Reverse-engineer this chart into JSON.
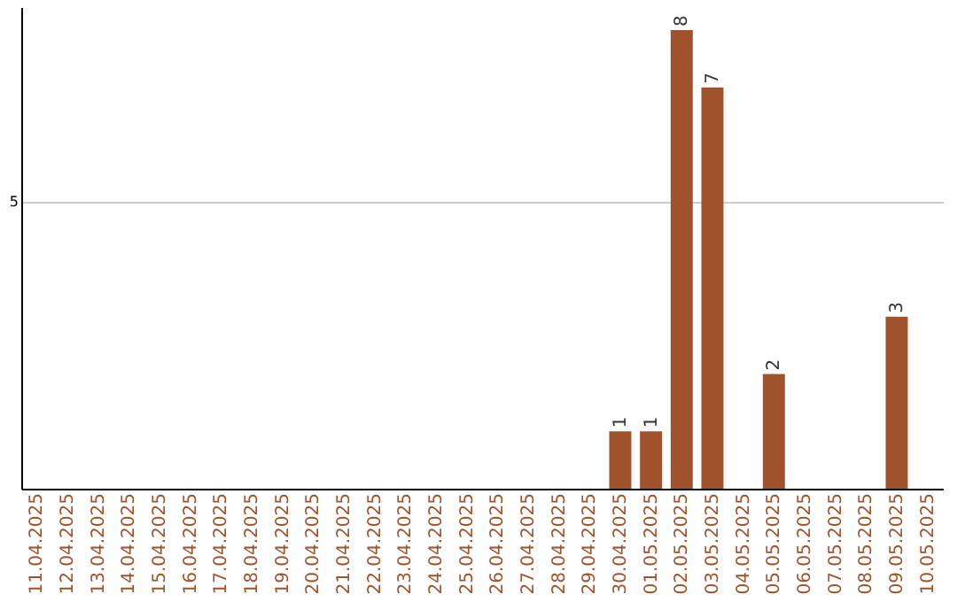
{
  "chart_data": {
    "type": "bar",
    "categories": [
      "11.04.2025",
      "12.04.2025",
      "13.04.2025",
      "14.04.2025",
      "15.04.2025",
      "16.04.2025",
      "17.04.2025",
      "18.04.2025",
      "19.04.2025",
      "20.04.2025",
      "21.04.2025",
      "22.04.2025",
      "23.04.2025",
      "24.04.2025",
      "25.04.2025",
      "26.04.2025",
      "27.04.2025",
      "28.04.2025",
      "29.04.2025",
      "30.04.2025",
      "01.05.2025",
      "02.05.2025",
      "03.05.2025",
      "04.05.2025",
      "05.05.2025",
      "06.05.2025",
      "07.05.2025",
      "08.05.2025",
      "09.05.2025",
      "10.05.2025"
    ],
    "values": [
      null,
      null,
      null,
      null,
      null,
      null,
      null,
      null,
      null,
      null,
      null,
      null,
      null,
      null,
      null,
      null,
      null,
      null,
      null,
      1,
      1,
      8,
      7,
      null,
      2,
      null,
      null,
      null,
      3,
      null
    ],
    "data_labels": true,
    "color": "#a0522d",
    "ylim": [
      0,
      8.4
    ],
    "yticks": [
      5
    ],
    "grid": "y"
  }
}
